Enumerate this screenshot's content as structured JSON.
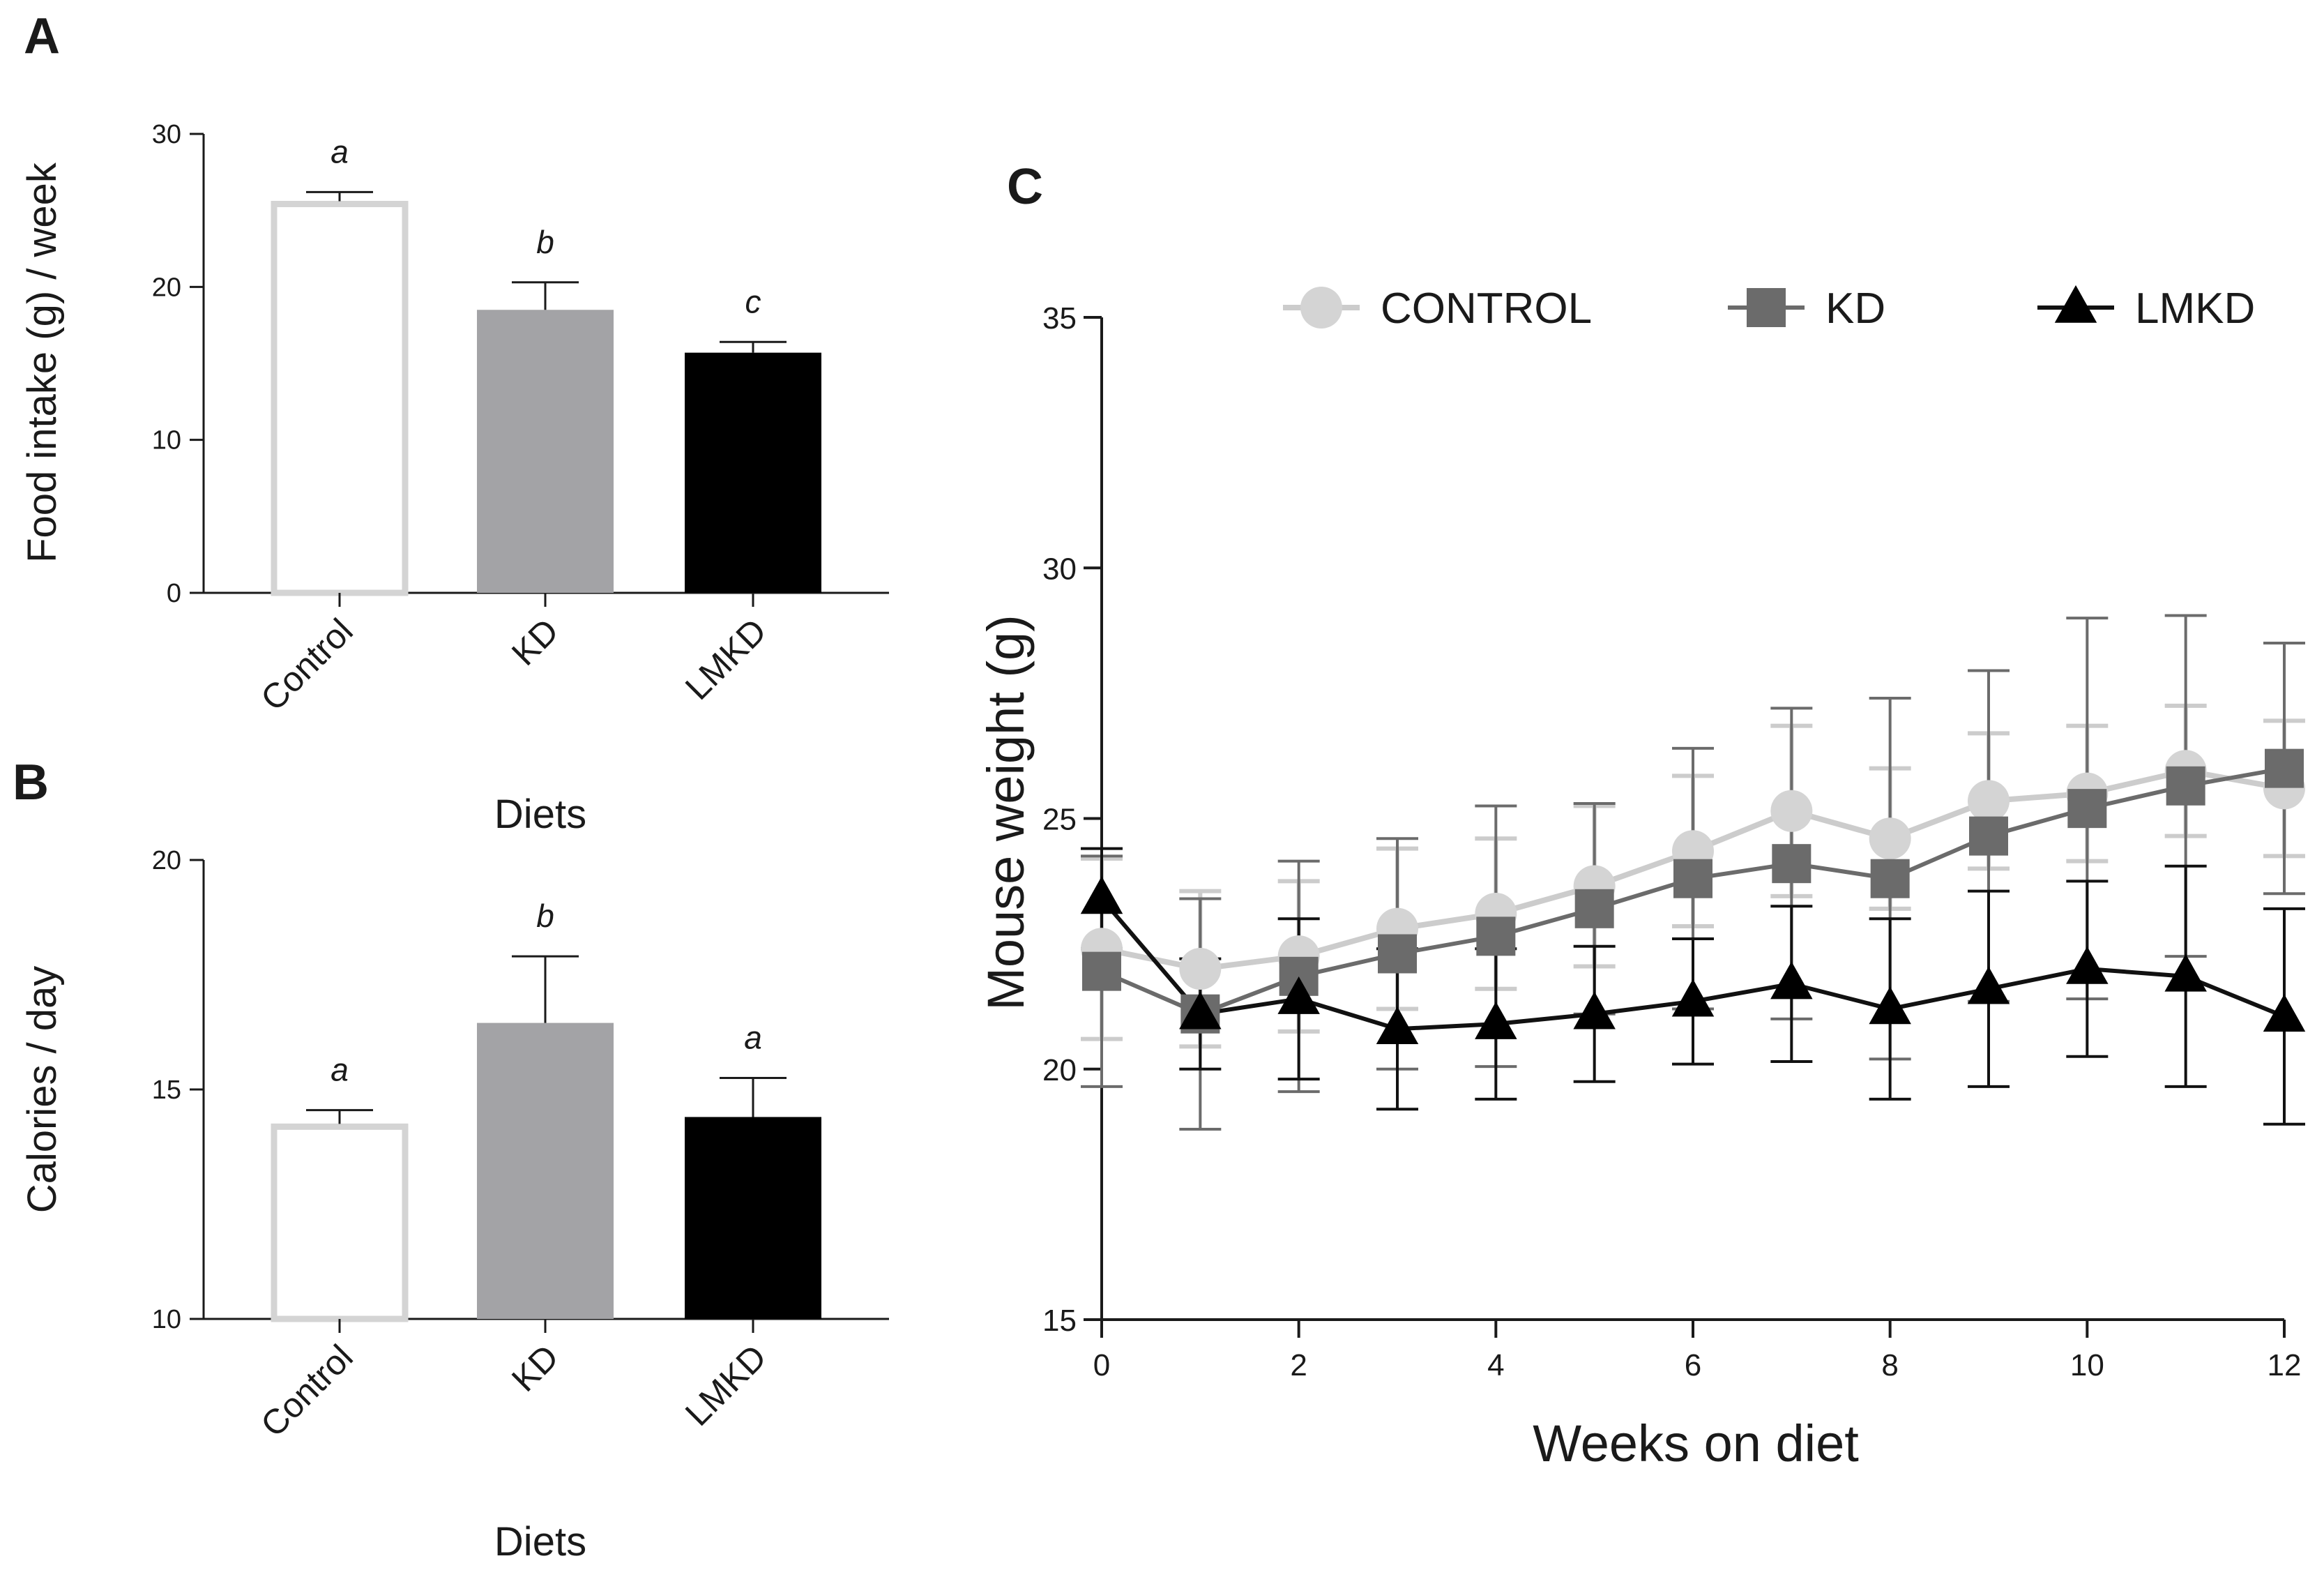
{
  "colors": {
    "control": "#d4d4d4",
    "kd": "#a3a3a6",
    "lmkd": "#000000",
    "control_line": "#cccccc",
    "kd_line": "#6b6b6b",
    "lmkd_line": "#111111",
    "axis": "#1a1a1a"
  },
  "chart_data": [
    {
      "panel": "A",
      "type": "bar",
      "categories": [
        "Control",
        "KD",
        "LMKD"
      ],
      "values": [
        25.6,
        18.5,
        15.7
      ],
      "errors": [
        0.6,
        1.8,
        0.7
      ],
      "significance": [
        "a",
        "b",
        "c"
      ],
      "xlabel": "Diets",
      "ylabel": "Food intake (g) / week",
      "ylim": [
        0,
        30
      ],
      "yticks": [
        0,
        10,
        20,
        30
      ],
      "grid": false
    },
    {
      "panel": "B",
      "type": "bar",
      "categories": [
        "Control",
        "KD",
        "LMKD"
      ],
      "values": [
        14.25,
        16.45,
        14.4
      ],
      "errors": [
        0.3,
        1.45,
        0.85
      ],
      "significance": [
        "a",
        "b",
        "a"
      ],
      "xlabel": "Diets",
      "ylabel": "Calories / day",
      "ylim": [
        10,
        20
      ],
      "yticks": [
        10,
        15,
        20
      ],
      "grid": false
    },
    {
      "panel": "C",
      "type": "line",
      "xlabel": "Weeks on diet",
      "ylabel": "Mouse weight (g)",
      "xlim": [
        0,
        12
      ],
      "ylim": [
        15,
        35
      ],
      "xticks": [
        0,
        2,
        4,
        6,
        8,
        10,
        12
      ],
      "yticks": [
        15,
        20,
        25,
        30,
        35
      ],
      "legend_position": "top",
      "grid": false,
      "series": [
        {
          "name": "CONTROL",
          "marker": "circle",
          "x": [
            0,
            1,
            2,
            3,
            4,
            5,
            6,
            7,
            8,
            9,
            10,
            11,
            12
          ],
          "y": [
            22.4,
            22.0,
            22.25,
            22.8,
            23.1,
            23.65,
            24.35,
            25.15,
            24.6,
            25.35,
            25.5,
            25.95,
            25.6
          ],
          "err": [
            1.8,
            1.55,
            1.5,
            1.6,
            1.5,
            1.6,
            1.5,
            1.7,
            1.4,
            1.35,
            1.35,
            1.3,
            1.35
          ]
        },
        {
          "name": "KD",
          "marker": "square",
          "x": [
            0,
            1,
            2,
            3,
            4,
            5,
            6,
            7,
            8,
            9,
            10,
            11,
            12
          ],
          "y": [
            21.95,
            21.1,
            21.85,
            22.3,
            22.65,
            23.2,
            23.8,
            24.1,
            23.8,
            24.65,
            25.2,
            25.65,
            26.0
          ],
          "err": [
            2.3,
            2.3,
            2.3,
            2.3,
            2.6,
            2.1,
            2.6,
            3.1,
            3.6,
            3.3,
            3.8,
            3.4,
            2.5
          ]
        },
        {
          "name": "LMKD",
          "marker": "triangle",
          "x": [
            0,
            1,
            2,
            3,
            4,
            5,
            6,
            7,
            8,
            9,
            10,
            11,
            12
          ],
          "y": [
            23.4,
            21.1,
            21.4,
            20.8,
            20.9,
            21.1,
            21.35,
            21.7,
            21.2,
            21.6,
            22.0,
            21.85,
            21.05
          ],
          "err": [
            1.0,
            1.1,
            1.6,
            1.6,
            1.5,
            1.35,
            1.25,
            1.55,
            1.8,
            1.95,
            1.75,
            2.2,
            2.15
          ]
        }
      ]
    }
  ]
}
